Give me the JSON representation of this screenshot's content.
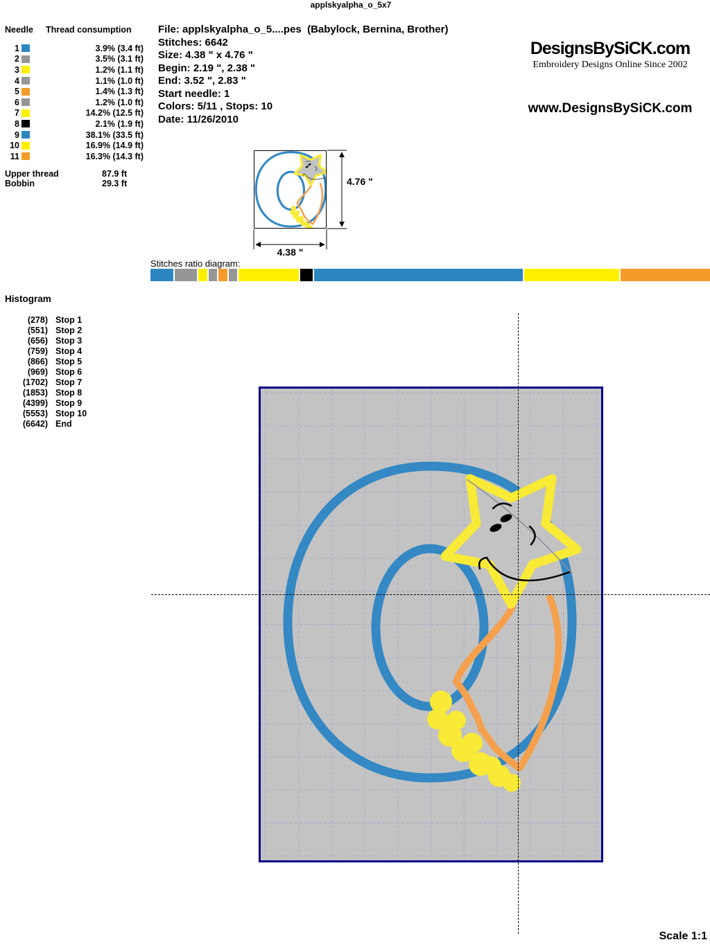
{
  "page_title": "applskyalpha_o_5x7",
  "palette": {
    "blue": "#2E86C1",
    "gray": "#969696",
    "yellow": "#FFF000",
    "orange": "#F59B2C",
    "black": "#000000"
  },
  "design": {
    "stitch_blue": "#3488C4",
    "stitch_yellow": "#F8EA36",
    "stitch_orange": "#F5A04C",
    "applique_fill": "#C3C3C3",
    "face_black": "#000000",
    "guide_gray": "#8A8F99",
    "hoop_border": "#000086",
    "hoop_bg": "#C3C3C3",
    "grid": "#A7AEC8"
  },
  "needle_table": {
    "header_needle": "Needle",
    "header_consumption": "Thread consumption",
    "rows": [
      {
        "n": "1",
        "color": "blue",
        "consumption": "3.9% (3.4 ft)"
      },
      {
        "n": "2",
        "color": "gray",
        "consumption": "3.5% (3.1 ft)"
      },
      {
        "n": "3",
        "color": "yellow",
        "consumption": "1.2% (1.1 ft)"
      },
      {
        "n": "4",
        "color": "gray",
        "consumption": "1.1% (1.0 ft)"
      },
      {
        "n": "5",
        "color": "orange",
        "consumption": "1.4% (1.3 ft)"
      },
      {
        "n": "6",
        "color": "gray",
        "consumption": "1.2% (1.0 ft)"
      },
      {
        "n": "7",
        "color": "yellow",
        "consumption": "14.2% (12.5 ft)"
      },
      {
        "n": "8",
        "color": "black",
        "consumption": "2.1% (1.9 ft)"
      },
      {
        "n": "9",
        "color": "blue",
        "consumption": "38.1% (33.5 ft)"
      },
      {
        "n": "10",
        "color": "yellow",
        "consumption": "16.9% (14.9 ft)"
      },
      {
        "n": "11",
        "color": "orange",
        "consumption": "16.3% (14.3 ft)"
      }
    ]
  },
  "totals": {
    "upper_label": "Upper thread",
    "upper_value": "87.9 ft",
    "bobbin_label": "Bobbin",
    "bobbin_value": "29.3 ft"
  },
  "file_info": {
    "lines": [
      "File: applskyalpha_o_5....pes  (Babylock, Bernina, Brother)",
      "Stitches: 6642",
      "Size: 4.38 \" x 4.76 \"",
      "Begin: 2.19 \", 2.38 \"",
      "End: 3.52 \", 2.83 \"",
      "Start needle: 1",
      "Colors: 5/11 , Stops: 10",
      "Date: 11/26/2010"
    ]
  },
  "brand": {
    "logo_text": "DesignsBySiCK.com",
    "logo_color": "#3A6BC9",
    "tagline": "Embroidery Designs Online Since 2002",
    "website": "www.DesignsBySiCK.com"
  },
  "preview": {
    "height_label": "4.76 \"",
    "width_label": "4.38 \""
  },
  "ratio": {
    "label": "Stitches ratio diagram:",
    "segments": [
      {
        "color": "blue",
        "pct": 4.185
      },
      {
        "color": "gray",
        "pct": 4.11
      },
      {
        "color": "yellow",
        "pct": 1.581
      },
      {
        "color": "gray",
        "pct": 1.551
      },
      {
        "color": "orange",
        "pct": 1.611
      },
      {
        "color": "gray",
        "pct": 1.551
      },
      {
        "color": "yellow",
        "pct": 11.035
      },
      {
        "color": "black",
        "pct": 2.273
      },
      {
        "color": "blue",
        "pct": 38.332
      },
      {
        "color": "yellow",
        "pct": 17.374
      },
      {
        "color": "orange",
        "pct": 16.395
      }
    ]
  },
  "histogram": {
    "title": "Histogram",
    "rows": [
      {
        "count": "(278)",
        "label": "Stop 1"
      },
      {
        "count": "(551)",
        "label": "Stop 2"
      },
      {
        "count": "(656)",
        "label": "Stop 3"
      },
      {
        "count": "(759)",
        "label": "Stop 4"
      },
      {
        "count": "(866)",
        "label": "Stop 5"
      },
      {
        "count": "(969)",
        "label": "Stop 6"
      },
      {
        "count": "(1702)",
        "label": "Stop 7"
      },
      {
        "count": "(1853)",
        "label": "Stop 8"
      },
      {
        "count": "(4399)",
        "label": "Stop 9"
      },
      {
        "count": "(5553)",
        "label": "Stop 10"
      },
      {
        "count": "(6642)",
        "label": "End"
      }
    ]
  },
  "scale_label": "Scale 1:1"
}
